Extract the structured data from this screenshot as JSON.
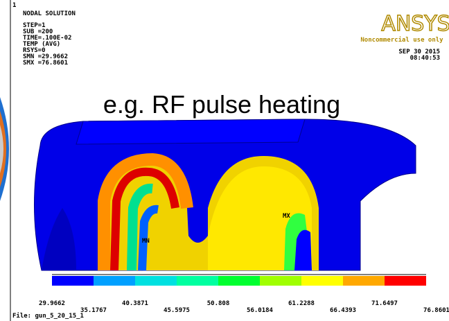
{
  "corner_number": "1",
  "header": {
    "lines": [
      "NODAL SOLUTION",
      "STEP=1",
      "SUB =200",
      "TIME=.100E-02",
      "TEMP      (AVG)",
      "RSYS=0",
      "SMN =29.9662",
      "SMX =76.8601"
    ]
  },
  "logo": {
    "brand": "ANSYS",
    "notice": "Noncommercial use only",
    "date": "SEP 30 2015",
    "time": "08:40:53"
  },
  "caption": "e.g. RF pulse heating",
  "markers": {
    "min": "MN",
    "max": "MX"
  },
  "legend": {
    "colors": [
      "#0000ff",
      "#00a0ff",
      "#00e0e0",
      "#00ffa0",
      "#00ff30",
      "#a0ff00",
      "#ffff00",
      "#ffa800",
      "#ff0000"
    ],
    "labels": [
      29.9662,
      35.1767,
      40.3871,
      45.5975,
      50.808,
      56.0184,
      61.2288,
      66.4393,
      71.6497,
      76.8601
    ]
  },
  "file": "File: gun_5_20_15_1"
}
